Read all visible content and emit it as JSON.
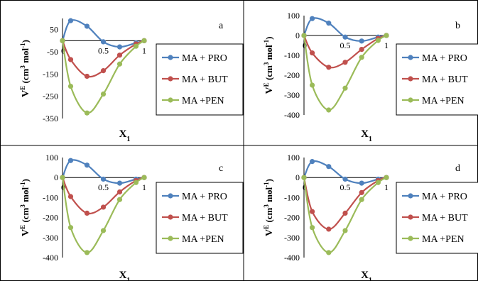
{
  "colors": {
    "MA + PRO": "#4f81bd",
    "MA + BUT": "#c0504d",
    "MA +PEN": "#9bbb59",
    "border": "#000000",
    "axis": "#000000"
  },
  "legend_placement": "right",
  "chart_data": [
    {
      "type": "line",
      "panel_label": "a",
      "ylabel": "V^E  (cm^3 mol^-1)",
      "xlabel": "X1",
      "x": [
        0,
        0.1,
        0.3,
        0.5,
        0.7,
        0.9,
        1
      ],
      "ylim": [
        -350,
        100
      ],
      "yticks": [
        50,
        -50,
        -150,
        -250,
        -350
      ],
      "xticks": [
        0,
        0.5,
        1
      ],
      "series": [
        {
          "name": "MA + PRO",
          "values": [
            0,
            90,
            65,
            -5,
            -28,
            -10,
            0
          ]
        },
        {
          "name": "MA + BUT",
          "values": [
            0,
            -85,
            -160,
            -135,
            -65,
            -15,
            0
          ]
        },
        {
          "name": "MA +PEN",
          "values": [
            0,
            -205,
            -325,
            -240,
            -105,
            -25,
            0
          ]
        }
      ]
    },
    {
      "type": "line",
      "panel_label": "b",
      "ylabel": "V^E  (cm^3 mol^-1)",
      "xlabel": "X1",
      "x": [
        0,
        0.1,
        0.3,
        0.5,
        0.7,
        0.9,
        1
      ],
      "ylim": [
        -400,
        100
      ],
      "yticks": [
        100,
        0,
        -100,
        -200,
        -300,
        -400
      ],
      "xticks": [
        0,
        0.5,
        1
      ],
      "series": [
        {
          "name": "MA + PRO",
          "values": [
            0,
            85,
            62,
            -8,
            -28,
            -8,
            0
          ]
        },
        {
          "name": "MA + BUT",
          "values": [
            0,
            -88,
            -160,
            -135,
            -70,
            -15,
            0
          ]
        },
        {
          "name": "MA +PEN",
          "values": [
            0,
            -250,
            -375,
            -265,
            -110,
            -25,
            0
          ]
        }
      ]
    },
    {
      "type": "line",
      "panel_label": "c",
      "ylabel": "V^E  (cm^3 mol^-1)",
      "xlabel": "X1",
      "x": [
        0,
        0.1,
        0.3,
        0.5,
        0.7,
        0.9,
        1
      ],
      "ylim": [
        -400,
        100
      ],
      "yticks": [
        100,
        0,
        -100,
        -200,
        -300,
        -400
      ],
      "xticks": [
        0,
        0.5,
        1
      ],
      "series": [
        {
          "name": "MA + PRO",
          "values": [
            0,
            85,
            62,
            -8,
            -28,
            -8,
            0
          ]
        },
        {
          "name": "MA + BUT",
          "values": [
            0,
            -95,
            -178,
            -148,
            -72,
            -15,
            0
          ]
        },
        {
          "name": "MA +PEN",
          "values": [
            0,
            -250,
            -375,
            -265,
            -110,
            -25,
            0
          ]
        }
      ]
    },
    {
      "type": "line",
      "panel_label": "d",
      "ylabel": "V^E  (cm^3 mol^-1)",
      "xlabel": "X1",
      "x": [
        0,
        0.1,
        0.3,
        0.5,
        0.7,
        0.9,
        1
      ],
      "ylim": [
        -400,
        100
      ],
      "yticks": [
        100,
        0,
        -100,
        -200,
        -300,
        -400
      ],
      "xticks": [
        0,
        0.5,
        1
      ],
      "series": [
        {
          "name": "MA + PRO",
          "values": [
            0,
            80,
            55,
            -8,
            -28,
            -8,
            0
          ]
        },
        {
          "name": "MA + BUT",
          "values": [
            0,
            -170,
            -258,
            -178,
            -75,
            -15,
            0
          ]
        },
        {
          "name": "MA +PEN",
          "values": [
            0,
            -250,
            -375,
            -265,
            -110,
            -25,
            0
          ]
        }
      ]
    }
  ]
}
